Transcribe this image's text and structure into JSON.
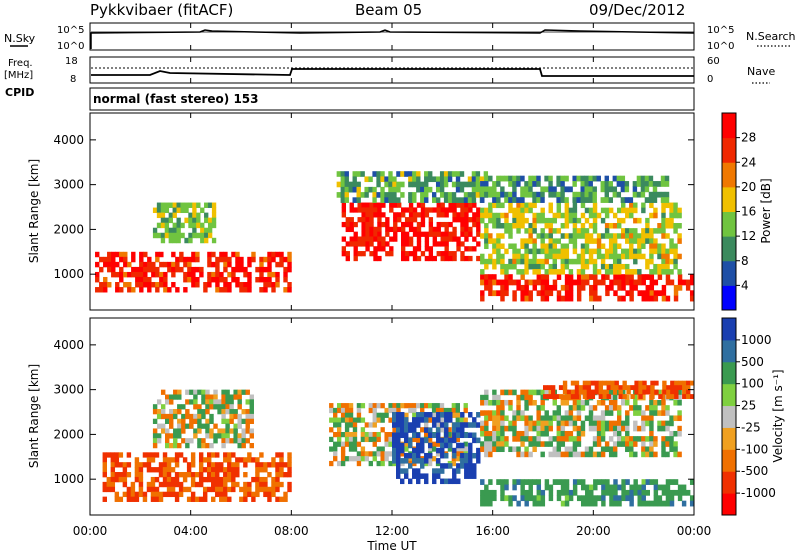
{
  "header": {
    "station": "Pykkvibaer (fitACF)",
    "beam": "Beam 05",
    "date": "09/Dec/2012"
  },
  "nsky_panel": {
    "left_label": "N.Sky",
    "right_label": "N.Search",
    "left_ticks": [
      "10^5",
      "10^0"
    ],
    "right_ticks": [
      "10^5",
      "10^0"
    ]
  },
  "freq_panel": {
    "left_label_1": "Freq.",
    "left_label_2": "[MHz]",
    "right_label": "Nave",
    "left_ticks": [
      "18",
      "8"
    ],
    "right_ticks": [
      "60",
      "0"
    ],
    "cpid_label": "CPID",
    "cpid_text": "normal (fast stereo) 153"
  },
  "x_axis": {
    "ticks": [
      "00:00",
      "04:00",
      "08:00",
      "12:00",
      "16:00",
      "20:00",
      "00:00"
    ],
    "label": "Time UT"
  },
  "chart_data": [
    {
      "type": "heatmap",
      "name": "power",
      "ylabel": "Slant Range [km]",
      "yticks": [
        "1000",
        "2000",
        "3000",
        "4000"
      ],
      "ylim": [
        200,
        4600
      ],
      "xlim_hours": [
        0,
        24
      ],
      "colorbar_label": "Power [dB]",
      "colorbar_ticks": [
        "4",
        "8",
        "12",
        "16",
        "20",
        "24",
        "28"
      ],
      "colorbar_colors": [
        "#0000ff",
        "#1e4fa6",
        "#3b8a5e",
        "#70c440",
        "#f0c000",
        "#f07800",
        "#f02800",
        "#ff0000"
      ],
      "regions": [
        {
          "t0": 0.2,
          "t1": 8.0,
          "r0": 600,
          "r1": 1500,
          "level": 26
        },
        {
          "t0": 2.5,
          "t1": 5.0,
          "r0": 1700,
          "r1": 2600,
          "level": 12
        },
        {
          "t0": 10.0,
          "t1": 15.5,
          "r0": 1300,
          "r1": 2600,
          "level": 27
        },
        {
          "t0": 9.8,
          "t1": 15.8,
          "r0": 2600,
          "r1": 3300,
          "level": 10
        },
        {
          "t0": 15.5,
          "t1": 24.0,
          "r0": 400,
          "r1": 1000,
          "level": 26
        },
        {
          "t0": 15.5,
          "t1": 23.5,
          "r0": 1000,
          "r1": 2600,
          "level": 14
        },
        {
          "t0": 15.5,
          "t1": 23.0,
          "r0": 2600,
          "r1": 3200,
          "level": 9
        }
      ]
    },
    {
      "type": "heatmap",
      "name": "velocity",
      "ylabel": "Slant Range [km]",
      "yticks": [
        "1000",
        "2000",
        "3000",
        "4000"
      ],
      "ylim": [
        200,
        4600
      ],
      "xlim_hours": [
        0,
        24
      ],
      "colorbar_label": "Velocity [m s⁻¹]",
      "colorbar_ticks": [
        "1000",
        "500",
        "100",
        "25",
        "-25",
        "-100",
        "-500",
        "-1000"
      ],
      "colorbar_colors": [
        "#1a3fb0",
        "#2f6fa0",
        "#3a9a50",
        "#7fd040",
        "#c0c0c0",
        "#f0a020",
        "#f07000",
        "#f03000",
        "#ff0000"
      ],
      "regions": [
        {
          "t0": 0.5,
          "t1": 8.0,
          "r0": 500,
          "r1": 1600,
          "velocity": -300
        },
        {
          "t0": 2.5,
          "t1": 6.5,
          "r0": 1700,
          "r1": 3000,
          "velocity": 0
        },
        {
          "t0": 9.5,
          "t1": 15.0,
          "r0": 1300,
          "r1": 2700,
          "velocity": 0
        },
        {
          "t0": 12.0,
          "t1": 15.5,
          "r0": 900,
          "r1": 2500,
          "velocity": 800
        },
        {
          "t0": 15.5,
          "t1": 24.0,
          "r0": 400,
          "r1": 1000,
          "velocity": 200
        },
        {
          "t0": 15.5,
          "t1": 23.5,
          "r0": 1500,
          "r1": 3000,
          "velocity": 0
        },
        {
          "t0": 18.0,
          "t1": 24.0,
          "r0": 2800,
          "r1": 3200,
          "velocity": -300
        }
      ]
    }
  ]
}
